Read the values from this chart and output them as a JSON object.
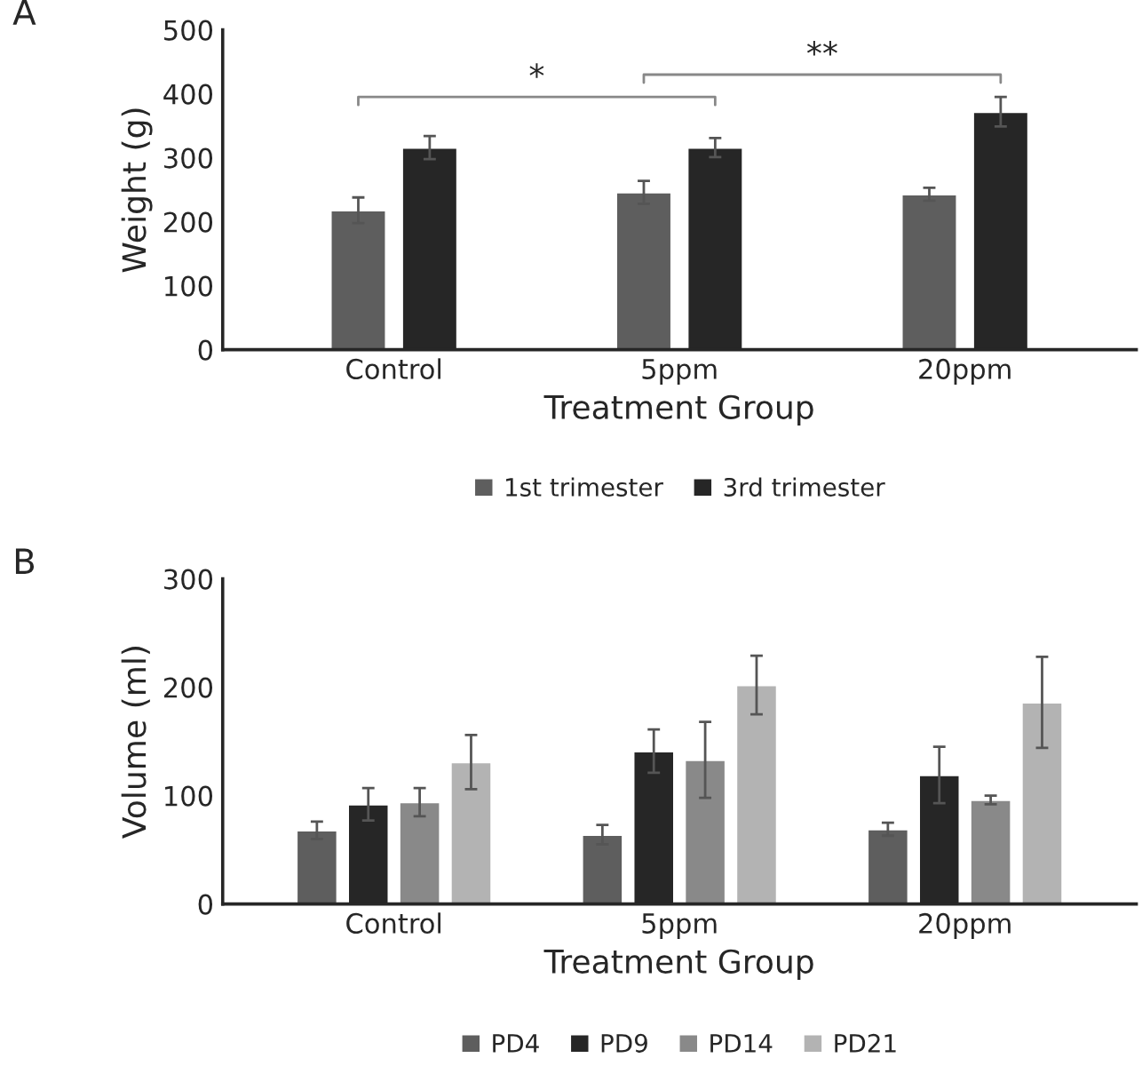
{
  "chart_data": [
    {
      "type": "bar",
      "title": "A",
      "xlabel": "Treatment Group",
      "ylabel": "Weight (g)",
      "categories": [
        "Control",
        "5ppm",
        "20ppm"
      ],
      "series": [
        {
          "name": "1st trimester",
          "color": "#5e5e5e",
          "values": [
            218,
            246,
            243
          ],
          "errors": [
            20,
            18,
            10
          ]
        },
        {
          "name": "3rd trimester",
          "color": "#262626",
          "values": [
            316,
            316,
            372
          ],
          "errors": [
            18,
            15,
            23
          ]
        }
      ],
      "ylim": [
        0,
        500
      ],
      "yticks": [
        0,
        100,
        200,
        300,
        400,
        500
      ],
      "grid": false,
      "legend": "bottom",
      "annotations": [
        "*",
        "**"
      ]
    },
    {
      "type": "bar",
      "title": "B",
      "xlabel": "Treatment Group",
      "ylabel": "Volume (ml)",
      "categories": [
        "Control",
        "5ppm",
        "20ppm"
      ],
      "series": [
        {
          "name": "PD4",
          "color": "#5e5e5e",
          "values": [
            68,
            64,
            69
          ],
          "errors": [
            8,
            9,
            6
          ]
        },
        {
          "name": "PD9",
          "color": "#262626",
          "values": [
            92,
            141,
            119
          ],
          "errors": [
            15,
            20,
            26
          ]
        },
        {
          "name": "PD14",
          "color": "#898989",
          "values": [
            94,
            133,
            96
          ],
          "errors": [
            13,
            35,
            4
          ]
        },
        {
          "name": "PD21",
          "color": "#b3b3b3",
          "values": [
            131,
            202,
            186
          ],
          "errors": [
            25,
            27,
            42
          ]
        }
      ],
      "ylim": [
        0,
        300
      ],
      "yticks": [
        0,
        100,
        200,
        300
      ],
      "grid": false,
      "legend": "bottom"
    }
  ]
}
